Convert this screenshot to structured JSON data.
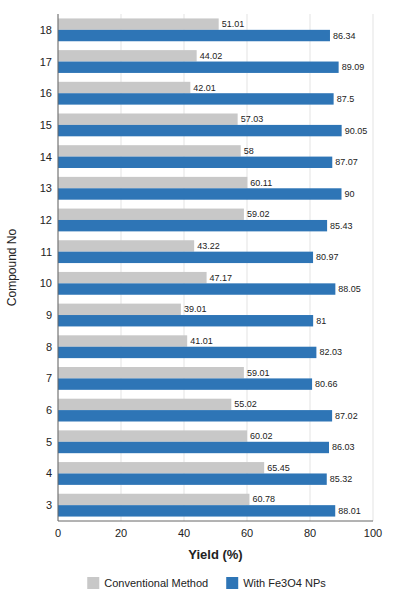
{
  "chart_data": {
    "type": "bar",
    "orientation": "horizontal",
    "categories": [
      "3",
      "4",
      "5",
      "6",
      "7",
      "8",
      "9",
      "10",
      "11",
      "12",
      "13",
      "14",
      "15",
      "16",
      "17",
      "18"
    ],
    "series": [
      {
        "name": "Conventional Method",
        "color": "#c8c8c8",
        "values": [
          60.78,
          65.45,
          60.02,
          55.02,
          59.01,
          41.01,
          39.01,
          47.17,
          43.22,
          59.02,
          60.11,
          58.0,
          57.03,
          42.01,
          44.02,
          51.01
        ]
      },
      {
        "name": "With Fe3O4 NPs",
        "color": "#2e75b6",
        "values": [
          88.01,
          85.32,
          86.03,
          87.02,
          80.66,
          82.03,
          81.0,
          88.05,
          80.97,
          85.43,
          90.0,
          87.07,
          90.05,
          87.5,
          89.09,
          86.34
        ]
      }
    ],
    "xlabel": "Yield (%)",
    "ylabel": "Compound No",
    "xlim": [
      0,
      100
    ],
    "xticks": [
      0,
      20,
      40,
      60,
      80,
      100
    ],
    "grid": true,
    "legend": "bottom",
    "data_labels": true
  }
}
